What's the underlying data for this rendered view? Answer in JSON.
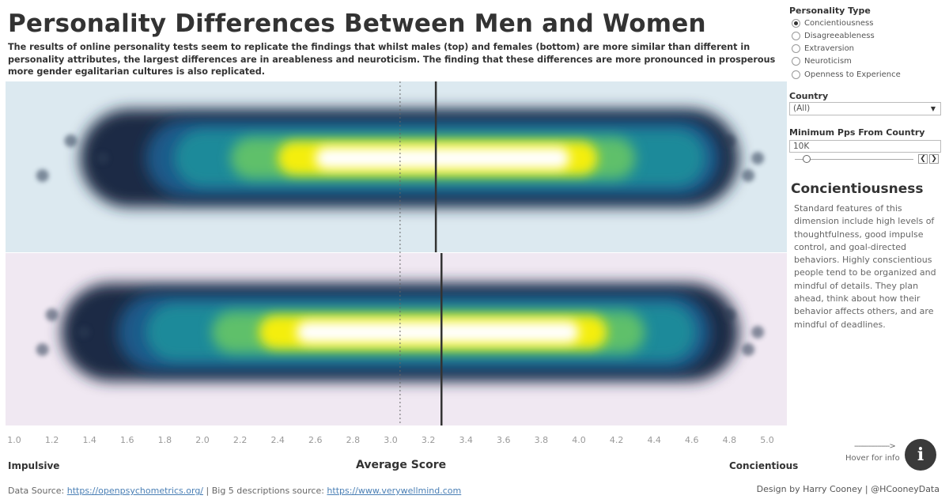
{
  "title": "Personality Differences Between Men and Women",
  "subtitle": "The results of online personality tests seem to replicate the findings that whilst males (top) and females (bottom) are more similar than different in personality attributes, the largest differences are in areableness and neuroticism. The finding that these differences are more pronounced in prosperous more gender egalitarian cultures is also replicated.",
  "panel": {
    "personality_type_label": "Personality Type",
    "personality_types": [
      "Concientiousness",
      "Disagreeableness",
      "Extraversion",
      "Neuroticism",
      "Openness to Experience"
    ],
    "selected_index": 0,
    "country_label": "Country",
    "country_value": "(All)",
    "min_pps_label": "Minimum Pps From Country",
    "min_pps_value": "10K",
    "slider_fraction": 0.1,
    "dimension_title": "Concientiousness",
    "dimension_description": "Standard features of this dimension include high levels of thoughtfulness, good impulse control, and goal-directed behaviors. Highly conscientious people tend to be organized and mindful of details. They plan ahead, think about how their behavior affects others, and are mindful of deadlines.",
    "hover_arrow": "----------------->",
    "hover_label": "Hover for info",
    "info_glyph": "i"
  },
  "axis": {
    "title": "Average Score",
    "left_label": "Impulsive",
    "right_label": "Concientious"
  },
  "footer": {
    "source_prefix": "Data Source: ",
    "source_link": "https://openpsychometrics.org/",
    "source_middle": " | Big 5 descriptions source: ",
    "source_link2": "https://www.verywellmind.com",
    "credit": "Design by Harry Cooney | @HCooneyData"
  },
  "colors": {
    "male_band": "#dce9f0",
    "female_band": "#f0e8f2",
    "density_stops": [
      "#1a2a44",
      "#1e5a8a",
      "#1f8a9a",
      "#5fc06a",
      "#f4ee10",
      "#ffffff"
    ],
    "mean_line": "#333333",
    "midpoint_line": "#666666"
  },
  "chart_data": {
    "type": "heatmap",
    "x_range": [
      1.0,
      5.0
    ],
    "x_ticks": [
      "1.0",
      "1.2",
      "1.4",
      "1.6",
      "1.8",
      "2.0",
      "2.2",
      "2.4",
      "2.6",
      "2.8",
      "3.0",
      "3.2",
      "3.4",
      "3.6",
      "3.8",
      "4.0",
      "4.2",
      "4.4",
      "4.6",
      "4.8",
      "5.0"
    ],
    "midpoint_reference": 3.05,
    "series": [
      {
        "mean": 3.24,
        "core_range": [
          2.6,
          3.95
        ],
        "spread_range": [
          1.7,
          4.75
        ],
        "extent_range": [
          1.35,
          4.85
        ]
      },
      {
        "mean": 3.27,
        "core_range": [
          2.5,
          4.0
        ],
        "spread_range": [
          1.55,
          4.7
        ],
        "extent_range": [
          1.25,
          4.85
        ]
      }
    ]
  }
}
